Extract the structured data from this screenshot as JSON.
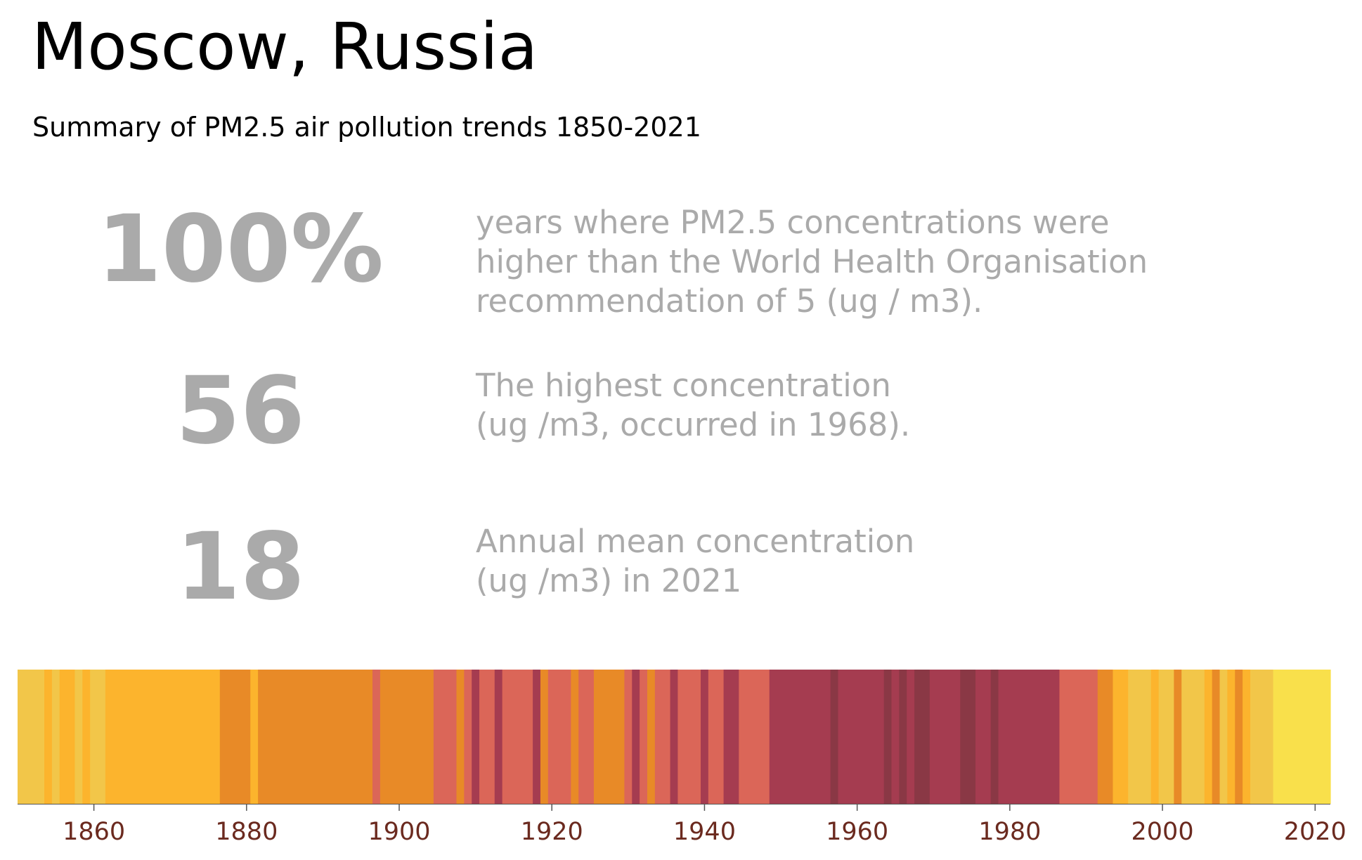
{
  "header": {
    "title": "Moscow, Russia",
    "subtitle": "Summary of PM2.5 air pollution trends 1850-2021"
  },
  "stats": [
    {
      "value": "100%",
      "lines": [
        "years where PM2.5 concentrations were",
        "higher than the World Health Organisation",
        "recommendation of 5 (ug / m3)."
      ]
    },
    {
      "value": "56",
      "lines": [
        "The highest concentration",
        "(ug /m3, occurred in 1968)."
      ]
    },
    {
      "value": "18",
      "lines": [
        "Annual mean concentration",
        "(ug /m3) in 2021"
      ]
    }
  ],
  "colors": {
    "text_gray": "#aaaaaa",
    "tick_label": "#6b2a1f",
    "level_0": "#f9e04b",
    "level_1": "#f2c649",
    "level_2": "#fcb42d",
    "level_3": "#e88a27",
    "level_4": "#db6658",
    "level_5": "#a53c50",
    "level_6": "#8a3845"
  },
  "chart_data": {
    "type": "heatmap",
    "xlim": [
      1850,
      2022
    ],
    "x_ticks": [
      1860,
      1880,
      1900,
      1920,
      1940,
      1960,
      1980,
      2000,
      2020
    ],
    "stripes": [
      {
        "start": 1850,
        "end": 1853.5,
        "level": 1
      },
      {
        "start": 1853.5,
        "end": 1854.5,
        "level": 2
      },
      {
        "start": 1854.5,
        "end": 1855.5,
        "level": 1
      },
      {
        "start": 1855.5,
        "end": 1857.5,
        "level": 2
      },
      {
        "start": 1857.5,
        "end": 1858.5,
        "level": 1
      },
      {
        "start": 1858.5,
        "end": 1859.5,
        "level": 2
      },
      {
        "start": 1859.5,
        "end": 1861.5,
        "level": 1
      },
      {
        "start": 1861.5,
        "end": 1876.5,
        "level": 2
      },
      {
        "start": 1876.5,
        "end": 1880.5,
        "level": 3
      },
      {
        "start": 1880.5,
        "end": 1881.5,
        "level": 2
      },
      {
        "start": 1881.5,
        "end": 1896.5,
        "level": 3
      },
      {
        "start": 1896.5,
        "end": 1897.5,
        "level": 4
      },
      {
        "start": 1897.5,
        "end": 1904.5,
        "level": 3
      },
      {
        "start": 1904.5,
        "end": 1907.5,
        "level": 4
      },
      {
        "start": 1907.5,
        "end": 1908.5,
        "level": 3
      },
      {
        "start": 1908.5,
        "end": 1909.5,
        "level": 4
      },
      {
        "start": 1909.5,
        "end": 1910.5,
        "level": 5
      },
      {
        "start": 1910.5,
        "end": 1912.5,
        "level": 4
      },
      {
        "start": 1912.5,
        "end": 1913.5,
        "level": 5
      },
      {
        "start": 1913.5,
        "end": 1917.5,
        "level": 4
      },
      {
        "start": 1917.5,
        "end": 1918.5,
        "level": 5
      },
      {
        "start": 1918.5,
        "end": 1919.5,
        "level": 3
      },
      {
        "start": 1919.5,
        "end": 1922.5,
        "level": 4
      },
      {
        "start": 1922.5,
        "end": 1923.5,
        "level": 3
      },
      {
        "start": 1923.5,
        "end": 1925.5,
        "level": 4
      },
      {
        "start": 1925.5,
        "end": 1929.5,
        "level": 3
      },
      {
        "start": 1929.5,
        "end": 1930.5,
        "level": 4
      },
      {
        "start": 1930.5,
        "end": 1931.5,
        "level": 5
      },
      {
        "start": 1931.5,
        "end": 1932.5,
        "level": 4
      },
      {
        "start": 1932.5,
        "end": 1933.5,
        "level": 3
      },
      {
        "start": 1933.5,
        "end": 1935.5,
        "level": 4
      },
      {
        "start": 1935.5,
        "end": 1936.5,
        "level": 5
      },
      {
        "start": 1936.5,
        "end": 1939.5,
        "level": 4
      },
      {
        "start": 1939.5,
        "end": 1940.5,
        "level": 5
      },
      {
        "start": 1940.5,
        "end": 1942.5,
        "level": 4
      },
      {
        "start": 1942.5,
        "end": 1944.5,
        "level": 5
      },
      {
        "start": 1944.5,
        "end": 1948.5,
        "level": 4
      },
      {
        "start": 1948.5,
        "end": 1956.5,
        "level": 5
      },
      {
        "start": 1956.5,
        "end": 1957.5,
        "level": 6
      },
      {
        "start": 1957.5,
        "end": 1963.5,
        "level": 5
      },
      {
        "start": 1963.5,
        "end": 1964.5,
        "level": 6
      },
      {
        "start": 1964.5,
        "end": 1965.5,
        "level": 5
      },
      {
        "start": 1965.5,
        "end": 1966.5,
        "level": 6
      },
      {
        "start": 1966.5,
        "end": 1967.5,
        "level": 5
      },
      {
        "start": 1967.5,
        "end": 1969.5,
        "level": 6
      },
      {
        "start": 1969.5,
        "end": 1973.5,
        "level": 5
      },
      {
        "start": 1973.5,
        "end": 1975.5,
        "level": 6
      },
      {
        "start": 1975.5,
        "end": 1977.5,
        "level": 5
      },
      {
        "start": 1977.5,
        "end": 1978.5,
        "level": 6
      },
      {
        "start": 1978.5,
        "end": 1986.5,
        "level": 5
      },
      {
        "start": 1986.5,
        "end": 1991.5,
        "level": 4
      },
      {
        "start": 1991.5,
        "end": 1993.5,
        "level": 3
      },
      {
        "start": 1993.5,
        "end": 1995.5,
        "level": 2
      },
      {
        "start": 1995.5,
        "end": 1998.5,
        "level": 1
      },
      {
        "start": 1998.5,
        "end": 1999.5,
        "level": 2
      },
      {
        "start": 1999.5,
        "end": 2001.5,
        "level": 1
      },
      {
        "start": 2001.5,
        "end": 2002.5,
        "level": 3
      },
      {
        "start": 2002.5,
        "end": 2005.5,
        "level": 1
      },
      {
        "start": 2005.5,
        "end": 2006.5,
        "level": 2
      },
      {
        "start": 2006.5,
        "end": 2007.5,
        "level": 3
      },
      {
        "start": 2007.5,
        "end": 2008.5,
        "level": 1
      },
      {
        "start": 2008.5,
        "end": 2009.5,
        "level": 2
      },
      {
        "start": 2009.5,
        "end": 2010.5,
        "level": 3
      },
      {
        "start": 2010.5,
        "end": 2011.5,
        "level": 2
      },
      {
        "start": 2011.5,
        "end": 2014.5,
        "level": 1
      },
      {
        "start": 2014.5,
        "end": 2022,
        "level": 0
      }
    ]
  }
}
